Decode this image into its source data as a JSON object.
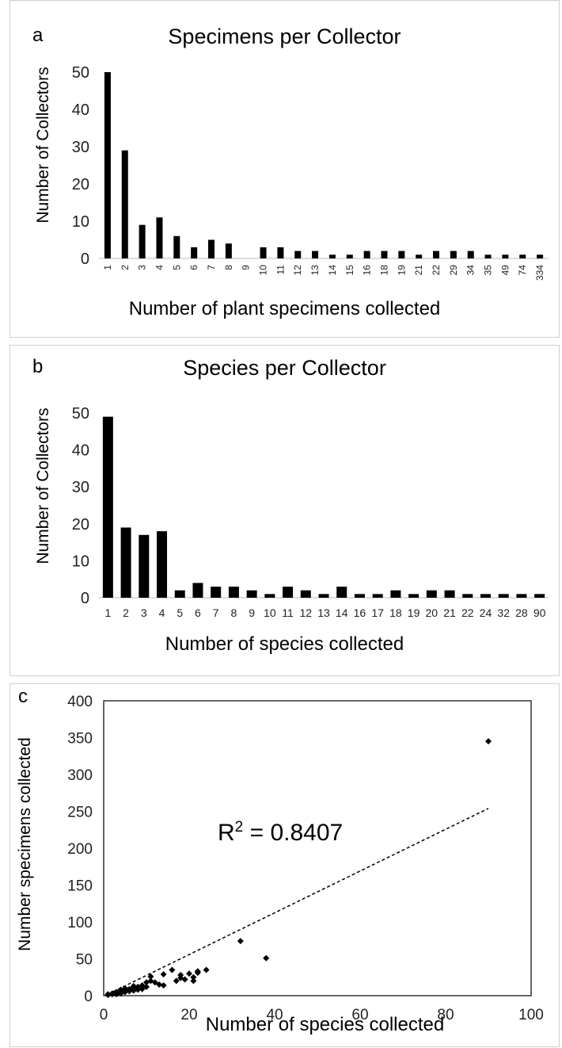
{
  "chart_data": [
    {
      "panel": "a",
      "type": "bar",
      "title": "Specimens per Collector",
      "xlabel": "Number of plant specimens collected",
      "ylabel": "Number of Collectors",
      "ylim": [
        0,
        50
      ],
      "yticks": [
        0,
        10,
        20,
        30,
        40,
        50
      ],
      "grid": false,
      "categories": [
        "1",
        "2",
        "3",
        "4",
        "5",
        "6",
        "7",
        "8",
        "9",
        "10",
        "11",
        "12",
        "13",
        "14",
        "15",
        "16",
        "18",
        "19",
        "21",
        "22",
        "29",
        "34",
        "35",
        "49",
        "74",
        "334"
      ],
      "values": [
        50,
        29,
        9,
        11,
        6,
        3,
        5,
        4,
        0,
        3,
        3,
        2,
        2,
        1,
        1,
        2,
        2,
        2,
        1,
        2,
        2,
        2,
        1,
        1,
        1,
        1
      ]
    },
    {
      "panel": "b",
      "type": "bar",
      "title": "Species per Collector",
      "xlabel": "Number of species collected",
      "ylabel": "Number of Collectors",
      "ylim": [
        0,
        50
      ],
      "yticks": [
        0,
        10,
        20,
        30,
        40,
        50
      ],
      "grid": false,
      "categories": [
        "1",
        "2",
        "3",
        "4",
        "5",
        "6",
        "7",
        "8",
        "9",
        "10",
        "11",
        "12",
        "13",
        "14",
        "16",
        "17",
        "18",
        "19",
        "20",
        "21",
        "22",
        "24",
        "32",
        "28",
        "90"
      ],
      "values": [
        49,
        19,
        17,
        18,
        2,
        4,
        3,
        3,
        2,
        1,
        3,
        2,
        1,
        3,
        1,
        1,
        2,
        1,
        2,
        2,
        1,
        1,
        1,
        1,
        1
      ]
    },
    {
      "panel": "c",
      "type": "scatter",
      "xlabel": "Number of species collected",
      "ylabel": "Number specimens collected",
      "xlim": [
        0,
        100
      ],
      "ylim": [
        0,
        400
      ],
      "xticks": [
        0,
        20,
        40,
        60,
        80,
        100
      ],
      "yticks": [
        0,
        50,
        100,
        150,
        200,
        250,
        300,
        350,
        400
      ],
      "grid": false,
      "annotation": "R² = 0.8407",
      "annotation_prefix": "R",
      "annotation_sup": "2",
      "annotation_value": " = 0.8407",
      "r_squared": 0.8407,
      "trendline": {
        "x": [
          1,
          90
        ],
        "y": [
          2,
          254
        ]
      },
      "points": [
        [
          1,
          1
        ],
        [
          1,
          2
        ],
        [
          2,
          2
        ],
        [
          2,
          3
        ],
        [
          3,
          2
        ],
        [
          3,
          4
        ],
        [
          3,
          5
        ],
        [
          4,
          3
        ],
        [
          4,
          6
        ],
        [
          4,
          8
        ],
        [
          5,
          5
        ],
        [
          5,
          7
        ],
        [
          5,
          10
        ],
        [
          6,
          6
        ],
        [
          6,
          9
        ],
        [
          7,
          7
        ],
        [
          7,
          11
        ],
        [
          7,
          13
        ],
        [
          8,
          8
        ],
        [
          8,
          12
        ],
        [
          9,
          9
        ],
        [
          9,
          14
        ],
        [
          10,
          12
        ],
        [
          10,
          18
        ],
        [
          11,
          20
        ],
        [
          11,
          26
        ],
        [
          12,
          18
        ],
        [
          13,
          15
        ],
        [
          14,
          14
        ],
        [
          14,
          29
        ],
        [
          16,
          35
        ],
        [
          17,
          20
        ],
        [
          18,
          24
        ],
        [
          18,
          28
        ],
        [
          19,
          22
        ],
        [
          20,
          30
        ],
        [
          21,
          25
        ],
        [
          21,
          20
        ],
        [
          22,
          31
        ],
        [
          22,
          33
        ],
        [
          24,
          35
        ],
        [
          32,
          74
        ],
        [
          38,
          51
        ],
        [
          90,
          345
        ]
      ]
    }
  ]
}
